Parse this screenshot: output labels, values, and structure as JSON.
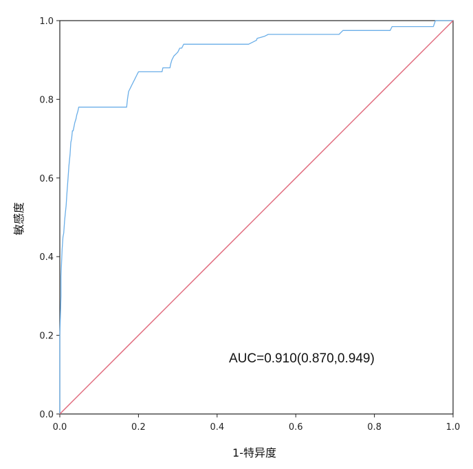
{
  "chart_data": {
    "type": "line",
    "xlabel": "1-特异度",
    "ylabel": "敏感度",
    "xlim": [
      0.0,
      1.0
    ],
    "ylim": [
      0.0,
      1.0
    ],
    "x_ticks": [
      "0.0",
      "0.2",
      "0.4",
      "0.6",
      "0.8",
      "1.0"
    ],
    "y_ticks": [
      "0.0",
      "0.2",
      "0.4",
      "0.6",
      "0.8",
      "1.0"
    ],
    "grid": false,
    "annotation": "AUC=0.910(0.870,0.949)",
    "series": [
      {
        "color": "#6aaee8",
        "x": [
          0.0,
          0.0,
          0.003,
          0.003,
          0.005,
          0.006,
          0.008,
          0.01,
          0.012,
          0.014,
          0.016,
          0.018,
          0.021,
          0.023,
          0.026,
          0.028,
          0.03,
          0.032,
          0.034,
          0.036,
          0.038,
          0.041,
          0.043,
          0.046,
          0.048,
          0.051,
          0.054,
          0.057,
          0.06,
          0.17,
          0.172,
          0.175,
          0.18,
          0.185,
          0.19,
          0.195,
          0.2,
          0.26,
          0.262,
          0.28,
          0.282,
          0.285,
          0.29,
          0.3,
          0.305,
          0.31,
          0.315,
          0.32,
          0.48,
          0.5,
          0.502,
          0.52,
          0.53,
          0.71,
          0.72,
          0.84,
          0.845,
          0.95,
          0.955,
          1.0
        ],
        "y": [
          0.0,
          0.2,
          0.3,
          0.35,
          0.4,
          0.42,
          0.45,
          0.46,
          0.49,
          0.51,
          0.53,
          0.56,
          0.6,
          0.63,
          0.66,
          0.69,
          0.7,
          0.72,
          0.72,
          0.73,
          0.74,
          0.75,
          0.76,
          0.77,
          0.78,
          0.78,
          0.78,
          0.78,
          0.78,
          0.78,
          0.8,
          0.82,
          0.83,
          0.84,
          0.85,
          0.86,
          0.87,
          0.87,
          0.88,
          0.88,
          0.89,
          0.9,
          0.91,
          0.92,
          0.93,
          0.93,
          0.94,
          0.94,
          0.94,
          0.95,
          0.955,
          0.96,
          0.965,
          0.965,
          0.975,
          0.975,
          0.985,
          0.985,
          1.0,
          1.0
        ]
      },
      {
        "color": "#e0697c",
        "x": [
          0.0,
          1.0
        ],
        "y": [
          0.0,
          1.0
        ]
      }
    ]
  }
}
